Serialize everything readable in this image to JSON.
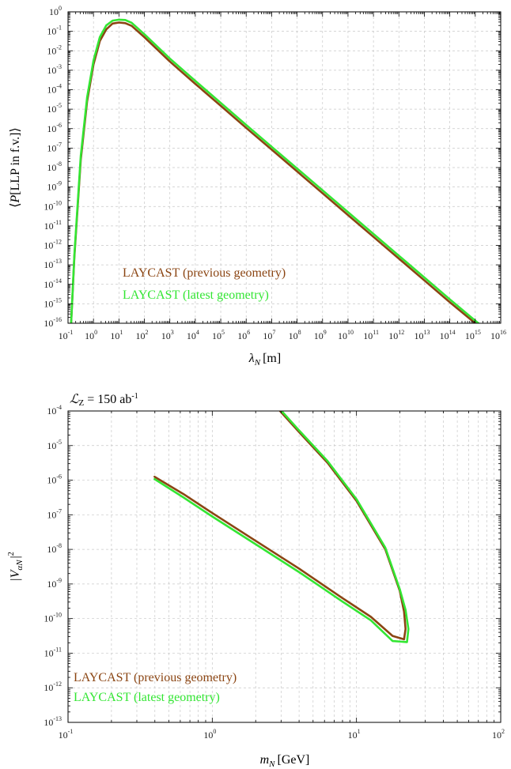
{
  "colors": {
    "previous": "#8b4513",
    "latest": "#33e633",
    "axis": "#000000",
    "grid": "#c8c8c8"
  },
  "chart_data": [
    {
      "type": "line",
      "title": "",
      "xlabel_symbol": "λ",
      "xlabel_sub": "N",
      "xlabel_unit": "[m]",
      "ylabel_pre": "⟨",
      "ylabel_symbol": "P",
      "ylabel_text": "[LLP in f.v.]",
      "ylabel_post": "⟩",
      "xscale": "log",
      "yscale": "log",
      "xlim_exp": [
        -1,
        16
      ],
      "ylim_exp": [
        -16,
        0
      ],
      "x_tick_labels": [
        "10",
        "10",
        "10",
        "10",
        "10",
        "10",
        "10",
        "10",
        "10",
        "10",
        "10",
        "10",
        "10",
        "10",
        "10",
        "10",
        "10",
        "10"
      ],
      "x_tick_exps": [
        "-1",
        "0",
        "1",
        "2",
        "3",
        "4",
        "5",
        "6",
        "7",
        "8",
        "9",
        "10",
        "11",
        "12",
        "13",
        "14",
        "15",
        "16"
      ],
      "y_tick_exps": [
        "0",
        "-1",
        "-2",
        "-3",
        "-4",
        "-5",
        "-6",
        "-7",
        "-8",
        "-9",
        "-10",
        "-11",
        "-12",
        "-13",
        "-14",
        "-15",
        "-16"
      ],
      "grid": true,
      "legend_position": "bottom-left",
      "series": [
        {
          "name": "LAYCAST (previous geometry)",
          "color": "#8b4513",
          "x_log": [
            -0.88,
            -0.75,
            -0.5,
            -0.25,
            0,
            0.25,
            0.5,
            0.75,
            1.0,
            1.25,
            1.5,
            2,
            3,
            4,
            5,
            6,
            7,
            8,
            9,
            10,
            11,
            12,
            13,
            14,
            15,
            16
          ],
          "y_log": [
            -16,
            -12.6,
            -7.6,
            -4.6,
            -2.7,
            -1.5,
            -0.9,
            -0.6,
            -0.55,
            -0.58,
            -0.72,
            -1.3,
            -2.55,
            -3.7,
            -4.83,
            -5.96,
            -7.08,
            -8.2,
            -9.32,
            -10.44,
            -11.56,
            -12.68,
            -13.8,
            -14.92,
            -16.0,
            -17.0
          ]
        },
        {
          "name": "LAYCAST (latest geometry)",
          "color": "#33e633",
          "x_log": [
            -0.88,
            -0.75,
            -0.5,
            -0.25,
            0,
            0.25,
            0.5,
            0.75,
            1.0,
            1.25,
            1.5,
            2,
            3,
            4,
            5,
            6,
            7,
            8,
            9,
            10,
            11,
            12,
            13,
            14,
            15,
            16
          ],
          "y_log": [
            -16,
            -12.5,
            -7.4,
            -4.4,
            -2.5,
            -1.3,
            -0.7,
            -0.45,
            -0.4,
            -0.42,
            -0.56,
            -1.15,
            -2.4,
            -3.55,
            -4.68,
            -5.81,
            -6.93,
            -8.05,
            -9.17,
            -10.29,
            -11.41,
            -12.53,
            -13.65,
            -14.77,
            -15.87,
            -16.9
          ]
        }
      ]
    },
    {
      "type": "line",
      "title": "",
      "annotation_symbol": "ℒ",
      "annotation_sub": "Z",
      "annotation_rest": " = 150 ab",
      "annotation_sup": "-1",
      "xlabel_symbol": "m",
      "xlabel_sub": "N",
      "xlabel_unit": "[GeV]",
      "ylabel_text": "|V",
      "ylabel_sub": "αN",
      "ylabel_end": "|",
      "ylabel_sup": "2",
      "xscale": "log",
      "yscale": "log",
      "xlim_exp": [
        -1,
        2
      ],
      "ylim_exp": [
        -13,
        -4
      ],
      "x_tick_exps": [
        "-1",
        "0",
        "1",
        "2"
      ],
      "y_tick_exps": [
        "-4",
        "-5",
        "-6",
        "-7",
        "-8",
        "-9",
        "-10",
        "-11",
        "-12",
        "-13"
      ],
      "grid": true,
      "legend_position": "bottom-left",
      "series": [
        {
          "name": "LAYCAST (previous geometry)",
          "color": "#8b4513",
          "x_log": [
            -0.4,
            -0.2,
            0,
            0.3,
            0.6,
            0.9,
            1.1,
            1.25,
            1.33,
            1.34,
            1.33,
            1.3,
            1.2,
            1.0,
            0.8,
            0.6,
            0.47
          ],
          "y_log": [
            -5.9,
            -6.4,
            -6.95,
            -7.75,
            -8.55,
            -9.4,
            -9.95,
            -10.5,
            -10.6,
            -10.3,
            -9.8,
            -9.2,
            -8.0,
            -6.6,
            -5.5,
            -4.6,
            -4.0
          ]
        },
        {
          "name": "LAYCAST (latest geometry)",
          "color": "#33e633",
          "x_log": [
            -0.4,
            -0.2,
            0,
            0.3,
            0.6,
            0.9,
            1.1,
            1.25,
            1.35,
            1.36,
            1.34,
            1.3,
            1.2,
            1.0,
            0.8,
            0.6,
            0.47
          ],
          "y_log": [
            -5.97,
            -6.5,
            -7.05,
            -7.85,
            -8.65,
            -9.5,
            -10.05,
            -10.65,
            -10.68,
            -10.3,
            -9.75,
            -9.15,
            -7.95,
            -6.55,
            -5.45,
            -4.55,
            -3.95
          ]
        }
      ]
    }
  ]
}
